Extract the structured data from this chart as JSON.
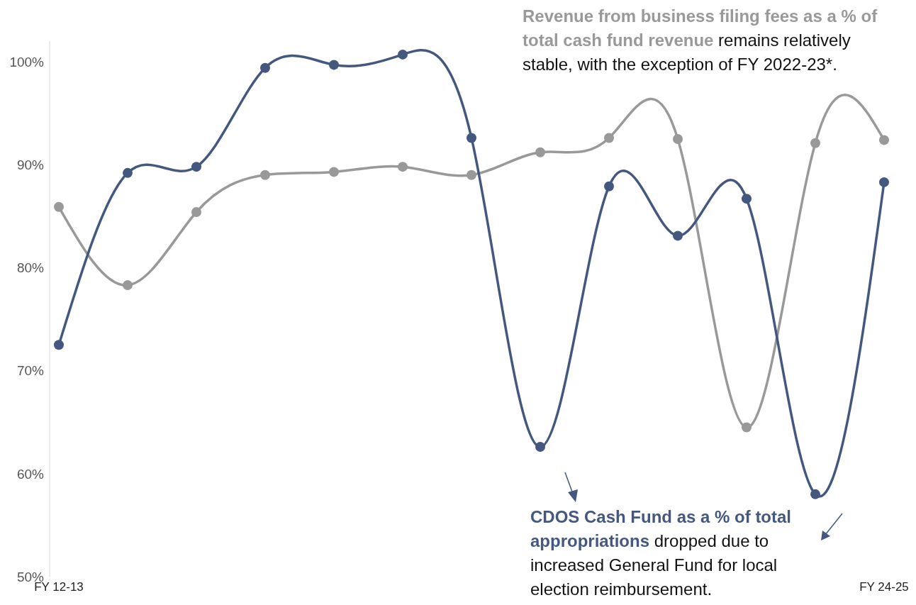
{
  "chart_data": {
    "type": "line",
    "categories": [
      "FY 12-13",
      null,
      null,
      null,
      null,
      null,
      null,
      null,
      null,
      null,
      null,
      null,
      "FY 24-25"
    ],
    "series": [
      {
        "name": "Revenue from business filing fees as a % of total cash fund revenue",
        "color": "#999999",
        "values": [
          85.9,
          78.3,
          85.4,
          89.0,
          89.3,
          89.8,
          89.0,
          91.2,
          92.6,
          92.5,
          64.5,
          92.1,
          92.4
        ]
      },
      {
        "name": "CDOS Cash Fund as a % of total appropriations",
        "color": "#44587f",
        "values": [
          72.5,
          89.2,
          89.8,
          99.4,
          99.7,
          100.7,
          92.6,
          62.6,
          87.9,
          83.1,
          86.7,
          58.0,
          88.3
        ]
      }
    ],
    "ylim": [
      50,
      102
    ],
    "yticks": [
      {
        "value": 50,
        "label": "50%"
      },
      {
        "value": 60,
        "label": "60%"
      },
      {
        "value": 70,
        "label": "70%"
      },
      {
        "value": 80,
        "label": "80%"
      },
      {
        "value": 90,
        "label": "90%"
      },
      {
        "value": 100,
        "label": "100%"
      }
    ],
    "marker": "circle",
    "line_style": "solid",
    "annotations": [
      "remains relatively stable, with the exception of FY 2022-23*.",
      "dropped due to increased General Fund for local election reimbursement."
    ]
  }
}
